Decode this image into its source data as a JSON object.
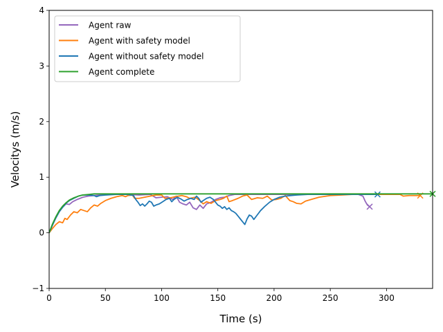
{
  "chart_data": {
    "type": "line",
    "xlabel": "Time (s)",
    "ylabel": "Velocitys (m/s)",
    "xlim": [
      0,
      341
    ],
    "ylim": [
      -1,
      4
    ],
    "xticks": [
      0,
      50,
      100,
      150,
      200,
      250,
      300
    ],
    "yticks": [
      -1,
      0,
      1,
      2,
      3,
      4
    ],
    "grid": false,
    "legend_position": "upper-left",
    "series": [
      {
        "name": "Agent raw",
        "color": "#9467bd",
        "end_marker": "x",
        "points": [
          [
            0,
            0
          ],
          [
            3,
            0.14
          ],
          [
            6,
            0.27
          ],
          [
            9,
            0.38
          ],
          [
            12,
            0.46
          ],
          [
            15,
            0.52
          ],
          [
            18,
            0.51
          ],
          [
            21,
            0.56
          ],
          [
            25,
            0.6
          ],
          [
            30,
            0.64
          ],
          [
            35,
            0.66
          ],
          [
            40,
            0.67
          ],
          [
            50,
            0.69
          ],
          [
            60,
            0.69
          ],
          [
            70,
            0.69
          ],
          [
            80,
            0.68
          ],
          [
            90,
            0.69
          ],
          [
            95,
            0.63
          ],
          [
            100,
            0.64
          ],
          [
            105,
            0.65
          ],
          [
            110,
            0.6
          ],
          [
            113,
            0.66
          ],
          [
            116,
            0.55
          ],
          [
            119,
            0.52
          ],
          [
            122,
            0.5
          ],
          [
            125,
            0.55
          ],
          [
            128,
            0.45
          ],
          [
            131,
            0.42
          ],
          [
            134,
            0.5
          ],
          [
            137,
            0.44
          ],
          [
            140,
            0.52
          ],
          [
            144,
            0.55
          ],
          [
            148,
            0.6
          ],
          [
            152,
            0.63
          ],
          [
            156,
            0.64
          ],
          [
            160,
            0.67
          ],
          [
            165,
            0.69
          ],
          [
            170,
            0.69
          ],
          [
            180,
            0.69
          ],
          [
            200,
            0.69
          ],
          [
            220,
            0.69
          ],
          [
            240,
            0.69
          ],
          [
            260,
            0.69
          ],
          [
            275,
            0.69
          ],
          [
            279,
            0.66
          ],
          [
            281,
            0.57
          ],
          [
            283,
            0.5
          ],
          [
            285,
            0.47
          ]
        ]
      },
      {
        "name": "Agent with safety model",
        "color": "#ff7f0e",
        "end_marker": "x",
        "points": [
          [
            0,
            0
          ],
          [
            3,
            0.08
          ],
          [
            6,
            0.15
          ],
          [
            9,
            0.2
          ],
          [
            12,
            0.18
          ],
          [
            14,
            0.26
          ],
          [
            16,
            0.24
          ],
          [
            19,
            0.32
          ],
          [
            22,
            0.38
          ],
          [
            25,
            0.36
          ],
          [
            28,
            0.42
          ],
          [
            31,
            0.4
          ],
          [
            34,
            0.38
          ],
          [
            37,
            0.45
          ],
          [
            40,
            0.5
          ],
          [
            43,
            0.48
          ],
          [
            46,
            0.53
          ],
          [
            50,
            0.58
          ],
          [
            55,
            0.62
          ],
          [
            60,
            0.65
          ],
          [
            65,
            0.67
          ],
          [
            68,
            0.65
          ],
          [
            70,
            0.67
          ],
          [
            74,
            0.68
          ],
          [
            76,
            0.62
          ],
          [
            80,
            0.62
          ],
          [
            85,
            0.64
          ],
          [
            90,
            0.66
          ],
          [
            95,
            0.68
          ],
          [
            100,
            0.68
          ],
          [
            103,
            0.62
          ],
          [
            108,
            0.63
          ],
          [
            112,
            0.65
          ],
          [
            118,
            0.67
          ],
          [
            122,
            0.65
          ],
          [
            125,
            0.62
          ],
          [
            130,
            0.64
          ],
          [
            134,
            0.58
          ],
          [
            137,
            0.52
          ],
          [
            140,
            0.56
          ],
          [
            144,
            0.53
          ],
          [
            148,
            0.58
          ],
          [
            152,
            0.6
          ],
          [
            155,
            0.62
          ],
          [
            158,
            0.66
          ],
          [
            160,
            0.56
          ],
          [
            163,
            0.58
          ],
          [
            168,
            0.62
          ],
          [
            172,
            0.66
          ],
          [
            176,
            0.68
          ],
          [
            180,
            0.6
          ],
          [
            185,
            0.63
          ],
          [
            190,
            0.62
          ],
          [
            194,
            0.66
          ],
          [
            198,
            0.59
          ],
          [
            202,
            0.6
          ],
          [
            206,
            0.62
          ],
          [
            210,
            0.67
          ],
          [
            214,
            0.58
          ],
          [
            217,
            0.56
          ],
          [
            220,
            0.53
          ],
          [
            224,
            0.52
          ],
          [
            228,
            0.57
          ],
          [
            233,
            0.6
          ],
          [
            240,
            0.64
          ],
          [
            250,
            0.67
          ],
          [
            260,
            0.68
          ],
          [
            270,
            0.69
          ],
          [
            285,
            0.69
          ],
          [
            300,
            0.69
          ],
          [
            312,
            0.69
          ],
          [
            315,
            0.66
          ],
          [
            320,
            0.67
          ],
          [
            325,
            0.67
          ],
          [
            330,
            0.67
          ]
        ]
      },
      {
        "name": "Agent without safety model",
        "color": "#1f77b4",
        "end_marker": "x",
        "points": [
          [
            0,
            0
          ],
          [
            3,
            0.14
          ],
          [
            6,
            0.27
          ],
          [
            9,
            0.38
          ],
          [
            12,
            0.46
          ],
          [
            15,
            0.53
          ],
          [
            18,
            0.58
          ],
          [
            22,
            0.62
          ],
          [
            26,
            0.66
          ],
          [
            30,
            0.68
          ],
          [
            35,
            0.68
          ],
          [
            40,
            0.67
          ],
          [
            42,
            0.65
          ],
          [
            45,
            0.67
          ],
          [
            50,
            0.68
          ],
          [
            60,
            0.69
          ],
          [
            70,
            0.69
          ],
          [
            75,
            0.67
          ],
          [
            77,
            0.6
          ],
          [
            79,
            0.55
          ],
          [
            81,
            0.49
          ],
          [
            83,
            0.52
          ],
          [
            85,
            0.48
          ],
          [
            87,
            0.52
          ],
          [
            89,
            0.57
          ],
          [
            91,
            0.55
          ],
          [
            93,
            0.48
          ],
          [
            95,
            0.5
          ],
          [
            98,
            0.52
          ],
          [
            101,
            0.56
          ],
          [
            104,
            0.6
          ],
          [
            107,
            0.62
          ],
          [
            109,
            0.56
          ],
          [
            111,
            0.6
          ],
          [
            114,
            0.64
          ],
          [
            117,
            0.61
          ],
          [
            120,
            0.57
          ],
          [
            123,
            0.6
          ],
          [
            126,
            0.62
          ],
          [
            129,
            0.6
          ],
          [
            131,
            0.66
          ],
          [
            133,
            0.62
          ],
          [
            135,
            0.55
          ],
          [
            137,
            0.58
          ],
          [
            140,
            0.62
          ],
          [
            143,
            0.64
          ],
          [
            146,
            0.6
          ],
          [
            148,
            0.55
          ],
          [
            150,
            0.5
          ],
          [
            152,
            0.48
          ],
          [
            154,
            0.44
          ],
          [
            156,
            0.47
          ],
          [
            158,
            0.42
          ],
          [
            160,
            0.45
          ],
          [
            162,
            0.4
          ],
          [
            164,
            0.38
          ],
          [
            166,
            0.35
          ],
          [
            168,
            0.3
          ],
          [
            170,
            0.25
          ],
          [
            172,
            0.2
          ],
          [
            174,
            0.15
          ],
          [
            176,
            0.25
          ],
          [
            178,
            0.32
          ],
          [
            180,
            0.3
          ],
          [
            182,
            0.24
          ],
          [
            185,
            0.32
          ],
          [
            188,
            0.4
          ],
          [
            192,
            0.48
          ],
          [
            196,
            0.55
          ],
          [
            200,
            0.6
          ],
          [
            205,
            0.64
          ],
          [
            210,
            0.66
          ],
          [
            220,
            0.68
          ],
          [
            230,
            0.69
          ],
          [
            240,
            0.69
          ],
          [
            260,
            0.69
          ],
          [
            280,
            0.69
          ],
          [
            292,
            0.69
          ]
        ]
      },
      {
        "name": "Agent complete",
        "color": "#2ca02c",
        "end_marker": "x",
        "points": [
          [
            0,
            0
          ],
          [
            3,
            0.16
          ],
          [
            6,
            0.29
          ],
          [
            9,
            0.4
          ],
          [
            12,
            0.48
          ],
          [
            15,
            0.54
          ],
          [
            18,
            0.59
          ],
          [
            22,
            0.63
          ],
          [
            26,
            0.66
          ],
          [
            30,
            0.68
          ],
          [
            35,
            0.69
          ],
          [
            40,
            0.7
          ],
          [
            60,
            0.7
          ],
          [
            100,
            0.7
          ],
          [
            150,
            0.7
          ],
          [
            200,
            0.7
          ],
          [
            250,
            0.7
          ],
          [
            300,
            0.7
          ],
          [
            341,
            0.7
          ]
        ]
      }
    ]
  }
}
